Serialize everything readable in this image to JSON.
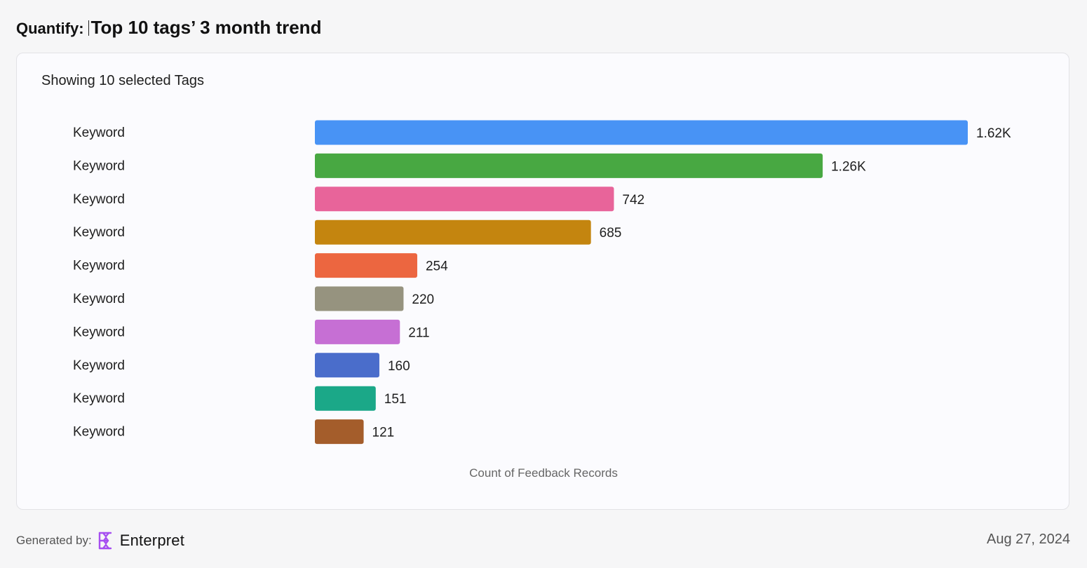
{
  "header": {
    "prefix": "Quantify:",
    "title": "Top 10 tags’ 3 month trend"
  },
  "card": {
    "subtitle": "Showing 10 selected Tags"
  },
  "chart_data": {
    "type": "bar",
    "orientation": "horizontal",
    "categories": [
      "Keyword",
      "Keyword",
      "Keyword",
      "Keyword",
      "Keyword",
      "Keyword",
      "Keyword",
      "Keyword",
      "Keyword",
      "Keyword"
    ],
    "values": [
      1620,
      1260,
      742,
      685,
      254,
      220,
      211,
      160,
      151,
      121
    ],
    "value_labels": [
      "1.62K",
      "1.26K",
      "742",
      "685",
      "254",
      "220",
      "211",
      "160",
      "151",
      "121"
    ],
    "colors": [
      "#4893f5",
      "#48a842",
      "#e8649a",
      "#c4850f",
      "#ec6640",
      "#96937f",
      "#c66fd4",
      "#4a6dcb",
      "#1ba888",
      "#a45d2b"
    ],
    "xlabel": "Count of Feedback Records",
    "ylabel": "",
    "xlim": [
      0,
      1620
    ],
    "grid": false,
    "legend": "none"
  },
  "footer": {
    "generated_by": "Generated by:",
    "brand": "Enterpret",
    "date": "Aug 27, 2024"
  },
  "colors": {
    "background": "#f6f6f7",
    "card_background": "#fbfbfe",
    "logo_accent": "#a64ff0"
  },
  "icons": {
    "logo": "enterpret-logo-icon"
  }
}
